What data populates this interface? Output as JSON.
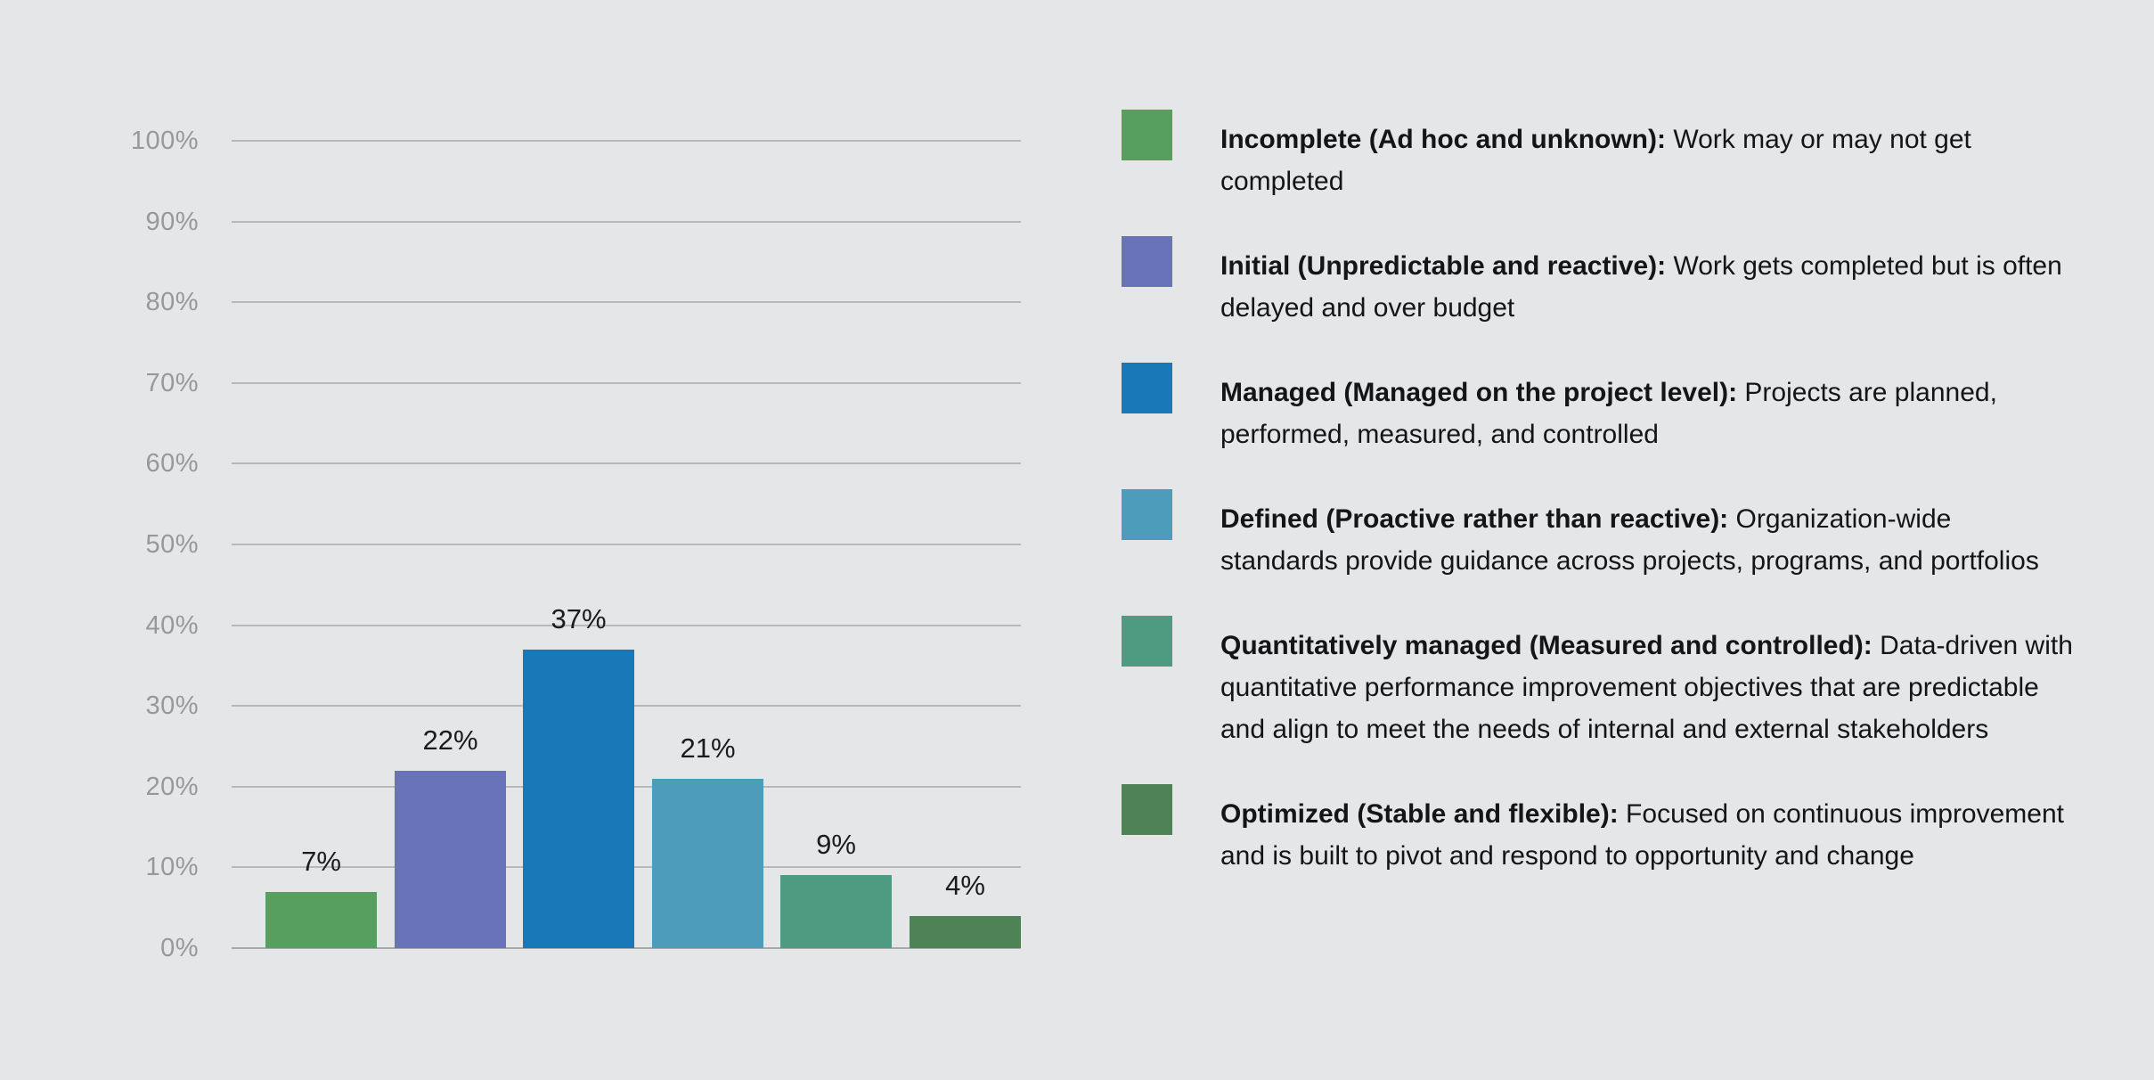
{
  "background": "#e5e6e8",
  "chart_data": {
    "type": "bar",
    "title": "",
    "xlabel": "",
    "ylabel": "",
    "ylim": [
      0,
      100
    ],
    "grid": true,
    "legend_position": "right",
    "categories": [
      "Incomplete (Ad hoc and unknown)",
      "Initial (Unpredictable and reactive)",
      "Managed (Managed on the project level)",
      "Defined (Proactive rather than reactive)",
      "Quantitatively managed (Measured and controlled)",
      "Optimized (Stable and flexible)"
    ],
    "values": [
      7,
      22,
      37,
      21,
      9,
      4
    ],
    "value_labels": [
      "7%",
      "22%",
      "37%",
      "21%",
      "9%",
      "4%"
    ],
    "bar_colors": [
      "#55a05e",
      "#6873b9",
      "#1878b8",
      "#4e9cbb",
      "#4f9b81",
      "#4e8455"
    ],
    "y_ticks": [
      {
        "label": "100%",
        "value": 100
      },
      {
        "label": "90%",
        "value": 90
      },
      {
        "label": "80%",
        "value": 80
      },
      {
        "label": "70%",
        "value": 70
      },
      {
        "label": "60%",
        "value": 60
      },
      {
        "label": "50%",
        "value": 50
      },
      {
        "label": "40%",
        "value": 40
      },
      {
        "label": "30%",
        "value": 30
      },
      {
        "label": "20%",
        "value": 20
      },
      {
        "label": "10%",
        "value": 10
      },
      {
        "label": "0%",
        "value": 0
      }
    ]
  },
  "legend": {
    "items": [
      {
        "color": "#55a05e",
        "term": "Incomplete (Ad hoc and unknown):",
        "description": " Work may or may not get completed"
      },
      {
        "color": "#6873b9",
        "term": "Initial (Unpredictable and reactive):",
        "description": " Work gets completed but is often delayed and over budget"
      },
      {
        "color": "#1878b8",
        "term": "Managed (Managed on the project level):",
        "description": " Projects are planned, performed, measured, and controlled"
      },
      {
        "color": "#4e9cbb",
        "term": "Defined (Proactive rather than reactive):",
        "description": " Organization-wide standards provide guidance across projects, programs, and portfolios"
      },
      {
        "color": "#4f9b81",
        "term": "Quantitatively managed (Measured and controlled):",
        "description": " Data-driven with quantitative performance improvement objectives that are predictable and align to meet the needs of internal and external stakeholders"
      },
      {
        "color": "#4e8455",
        "term": "Optimized (Stable and flexible):",
        "description": " Focused on continuous improvement and is built to pivot and respond to opportunity and change"
      }
    ]
  }
}
